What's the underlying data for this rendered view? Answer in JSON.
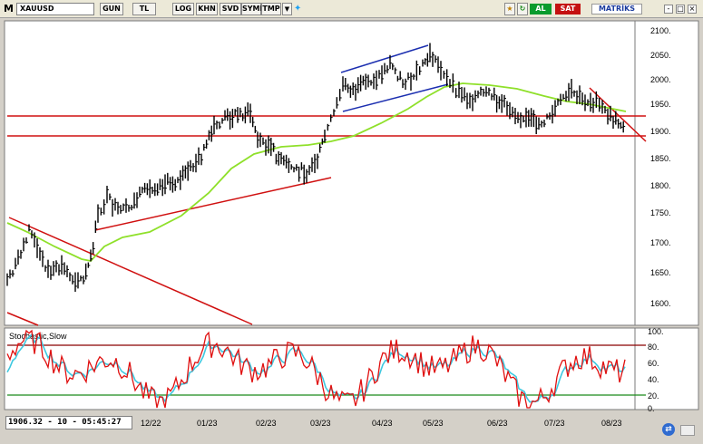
{
  "toolbar": {
    "window_letter": "M",
    "symbol": "XAUUSD",
    "buttons": [
      "GUN",
      "TL",
      "LOG",
      "KHN",
      "SVD",
      "SYMP",
      "TMP"
    ],
    "buy_label": "AL",
    "sell_label": "SAT",
    "brand": "MATRİKS",
    "window_controls": [
      "-",
      "□",
      "×"
    ]
  },
  "colors": {
    "bg": "#ffffff",
    "price_bar": "#000000",
    "ma_line": "#8fe02a",
    "support_line": "#d01010",
    "channel_line": "#1c2fb0",
    "stoch_k": "#e01010",
    "stoch_d": "#3ec8e0",
    "buy": "#0a9b2d",
    "sell": "#c41010"
  },
  "icons": [
    "dropdown-arrow-icon",
    "twitter-bird-icon",
    "star-icon",
    "refresh-icon",
    "chart-icon",
    "swap-icon"
  ],
  "price_axis": {
    "labels": [
      "2100.",
      "2050.",
      "2000.",
      "1950.",
      "1900.",
      "1850.",
      "1800.",
      "1750.",
      "1700.",
      "1650.",
      "1600."
    ]
  },
  "stoch_panel": {
    "title": "Stochastic,Slow",
    "labels": [
      "100.",
      "80.",
      "60.",
      "40.",
      "20.",
      "0."
    ]
  },
  "status": {
    "readout": "1906.32 - 10 - 05:45:27",
    "x_labels": [
      "12/22",
      "01/23",
      "02/23",
      "03/23",
      "04/23",
      "05/23",
      "06/23",
      "07/23",
      "08/23"
    ]
  }
}
